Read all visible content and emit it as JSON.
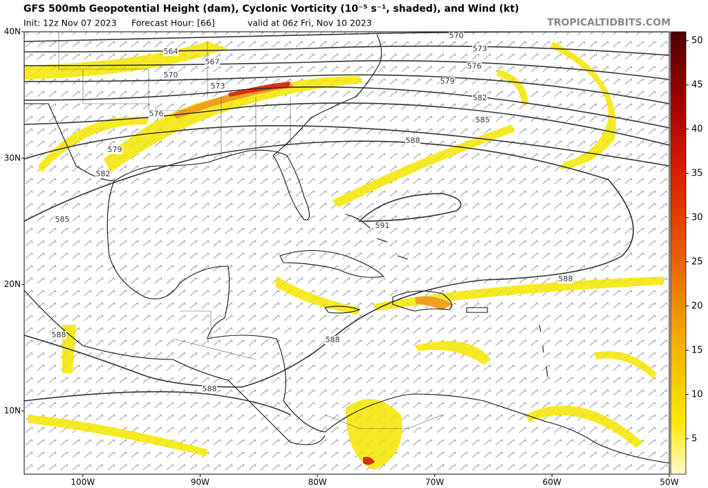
{
  "header": {
    "title": "GFS 500mb Geopotential Height (dam), Cyclonic Vorticity (10⁻⁵ s⁻¹, shaded), and Wind (kt)",
    "init": "Init: 12z Nov 07 2023",
    "forecast_hour": "Forecast Hour: [66]",
    "valid": "valid at 06z Fri, Nov 10 2023",
    "source": "TROPICALTIDBITS.COM"
  },
  "map": {
    "lonlim": [
      -105,
      -50
    ],
    "latlim": [
      5,
      40
    ],
    "lat_ticks": [
      {
        "value": 40,
        "label": "40N"
      },
      {
        "value": 30,
        "label": "30N"
      },
      {
        "value": 20,
        "label": "20N"
      },
      {
        "value": 10,
        "label": "10N"
      }
    ],
    "lon_ticks": [
      {
        "value": -100,
        "label": "100W"
      },
      {
        "value": -90,
        "label": "90W"
      },
      {
        "value": -80,
        "label": "80W"
      },
      {
        "value": -70,
        "label": "70W"
      },
      {
        "value": -60,
        "label": "60W"
      },
      {
        "value": -50,
        "label": "50W"
      }
    ],
    "contour_labels": [
      570,
      573,
      576,
      579,
      582,
      585,
      588,
      564,
      567,
      570,
      573,
      576,
      579,
      582,
      585,
      588,
      588,
      588,
      588,
      591
    ]
  },
  "colorbar": {
    "lim": [
      1,
      51
    ],
    "ticks": [
      5,
      10,
      15,
      20,
      25,
      30,
      35,
      40,
      45,
      50
    ]
  }
}
